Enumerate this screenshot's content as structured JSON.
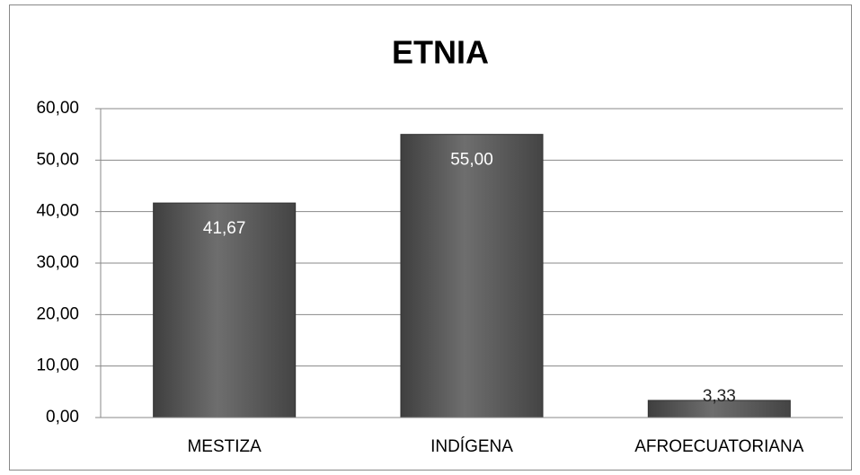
{
  "chart_data": {
    "type": "bar",
    "title": "ETNIA",
    "categories": [
      "MESTIZA",
      "INDÍGENA",
      "AFROECUATORIANA"
    ],
    "values": [
      41.67,
      55,
      3.33
    ],
    "value_labels": [
      "41,67",
      "55,00",
      "3,33"
    ],
    "color": "#5a5a5a",
    "ylim": [
      0,
      60
    ],
    "yticks": [
      {
        "value": 0,
        "label": "0,00"
      },
      {
        "value": 10,
        "label": "10,00"
      },
      {
        "value": 20,
        "label": "20,00"
      },
      {
        "value": 30,
        "label": "30,00"
      },
      {
        "value": 40,
        "label": "40,00"
      },
      {
        "value": 50,
        "label": "50,00"
      },
      {
        "value": 60,
        "label": "60,00"
      }
    ],
    "grid": true
  }
}
